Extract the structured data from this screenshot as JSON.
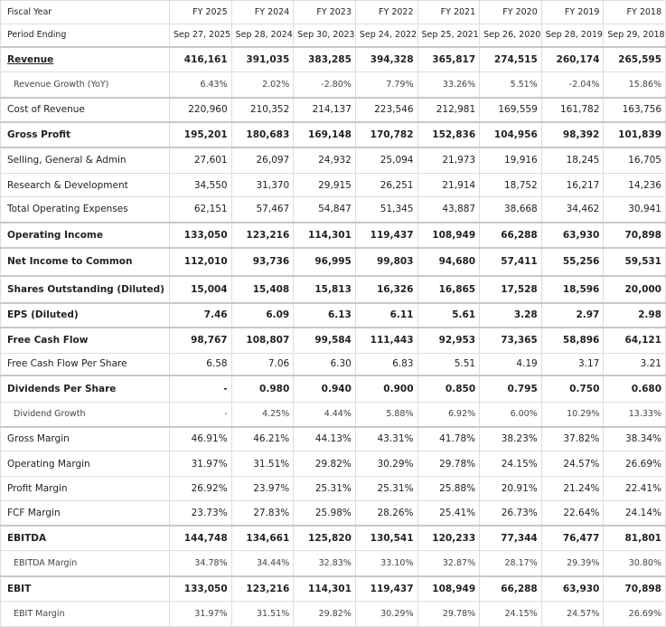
{
  "table": {
    "rows": [
      [
        "Fiscal Year",
        "FY 2025",
        "FY 2024",
        "FY 2023",
        "FY 2022",
        "FY 2021",
        "FY 2020",
        "FY 2019",
        "FY 2018"
      ],
      [
        "Period Ending",
        "Sep 27, 2025",
        "Sep 28, 2024",
        "Sep 30, 2023",
        "Sep 24, 2022",
        "Sep 25, 2021",
        "Sep 26, 2020",
        "Sep 28, 2019",
        "Sep 29, 2018"
      ],
      [
        "Revenue",
        "416,161",
        "391,035",
        "383,285",
        "394,328",
        "365,817",
        "274,515",
        "260,174",
        "265,595"
      ],
      [
        "Revenue Growth (YoY)",
        "6.43%",
        "2.02%",
        "-2.80%",
        "7.79%",
        "33.26%",
        "5.51%",
        "-2.04%",
        "15.86%"
      ],
      [
        "Cost of Revenue",
        "220,960",
        "210,352",
        "214,137",
        "223,546",
        "212,981",
        "169,559",
        "161,782",
        "163,756"
      ],
      [
        "Gross Profit",
        "195,201",
        "180,683",
        "169,148",
        "170,782",
        "152,836",
        "104,956",
        "98,392",
        "101,839"
      ],
      [
        "Selling, General & Admin",
        "27,601",
        "26,097",
        "24,932",
        "25,094",
        "21,973",
        "19,916",
        "18,245",
        "16,705"
      ],
      [
        "Research & Development",
        "34,550",
        "31,370",
        "29,915",
        "26,251",
        "21,914",
        "18,752",
        "16,217",
        "14,236"
      ],
      [
        "Total Operating Expenses",
        "62,151",
        "57,467",
        "54,847",
        "51,345",
        "43,887",
        "38,668",
        "34,462",
        "30,941"
      ],
      [
        "Operating Income",
        "133,050",
        "123,216",
        "114,301",
        "119,437",
        "108,949",
        "66,288",
        "63,930",
        "70,898"
      ],
      [
        "Net Income to Common",
        "112,010",
        "93,736",
        "96,995",
        "99,803",
        "94,680",
        "57,411",
        "55,256",
        "59,531"
      ],
      [
        "Shares Outstanding (Diluted)",
        "15,004",
        "15,408",
        "15,813",
        "16,326",
        "16,865",
        "17,528",
        "18,596",
        "20,000"
      ],
      [
        "EPS (Diluted)",
        "7.46",
        "6.09",
        "6.13",
        "6.11",
        "5.61",
        "3.28",
        "2.97",
        "2.98"
      ],
      [
        "Free Cash Flow",
        "98,767",
        "108,807",
        "99,584",
        "111,443",
        "92,953",
        "73,365",
        "58,896",
        "64,121"
      ],
      [
        "Free Cash Flow Per Share",
        "6.58",
        "7.06",
        "6.30",
        "6.83",
        "5.51",
        "4.19",
        "3.17",
        "3.21"
      ],
      [
        "Dividends Per Share",
        "-",
        "0.980",
        "0.940",
        "0.900",
        "0.850",
        "0.795",
        "0.750",
        "0.680"
      ],
      [
        "Dividend Growth",
        "-",
        "4.25%",
        "4.44%",
        "5.88%",
        "6.92%",
        "6.00%",
        "10.29%",
        "13.33%"
      ],
      [
        "Gross Margin",
        "46.91%",
        "46.21%",
        "44.13%",
        "43.31%",
        "41.78%",
        "38.23%",
        "37.82%",
        "38.34%"
      ],
      [
        "Operating Margin",
        "31.97%",
        "31.51%",
        "29.82%",
        "30.29%",
        "29.78%",
        "24.15%",
        "24.57%",
        "26.69%"
      ],
      [
        "Profit Margin",
        "26.92%",
        "23.97%",
        "25.31%",
        "25.31%",
        "25.88%",
        "20.91%",
        "21.24%",
        "22.41%"
      ],
      [
        "FCF Margin",
        "23.73%",
        "27.83%",
        "25.98%",
        "28.26%",
        "25.41%",
        "26.73%",
        "22.64%",
        "24.14%"
      ],
      [
        "EBITDA",
        "144,748",
        "134,661",
        "125,820",
        "130,541",
        "120,233",
        "77,344",
        "76,477",
        "81,801"
      ],
      [
        "EBITDA Margin",
        "34.78%",
        "34.44%",
        "32.83%",
        "33.10%",
        "32.87%",
        "28.17%",
        "29.39%",
        "30.80%"
      ],
      [
        "EBIT",
        "133,050",
        "123,216",
        "114,301",
        "119,437",
        "108,949",
        "66,288",
        "63,930",
        "70,898"
      ],
      [
        "EBIT Margin",
        "31.97%",
        "31.51%",
        "29.82%",
        "30.29%",
        "29.78%",
        "24.15%",
        "24.57%",
        "26.69%"
      ]
    ]
  }
}
